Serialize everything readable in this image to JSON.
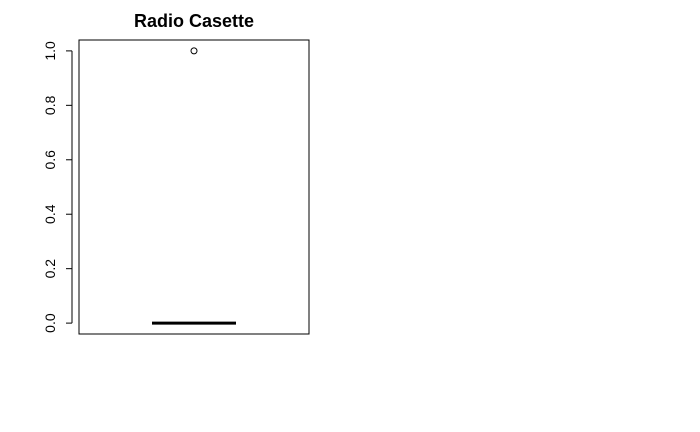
{
  "chart_data": {
    "type": "box",
    "title": "Radio Casette",
    "xlabel": "",
    "ylabel": "",
    "ylim": [
      -0.04,
      1.04
    ],
    "yticks": [
      0.0,
      0.2,
      0.4,
      0.6,
      0.8,
      1.0
    ],
    "ytick_labels": [
      "0.0",
      "0.2",
      "0.4",
      "0.6",
      "0.8",
      "1.0"
    ],
    "box": {
      "min": 0,
      "q1": 0,
      "median": 0,
      "q3": 0,
      "max": 0,
      "outliers": [
        1
      ]
    },
    "grid": false,
    "colors": {
      "stroke": "#000000",
      "background": "#ffffff"
    }
  }
}
